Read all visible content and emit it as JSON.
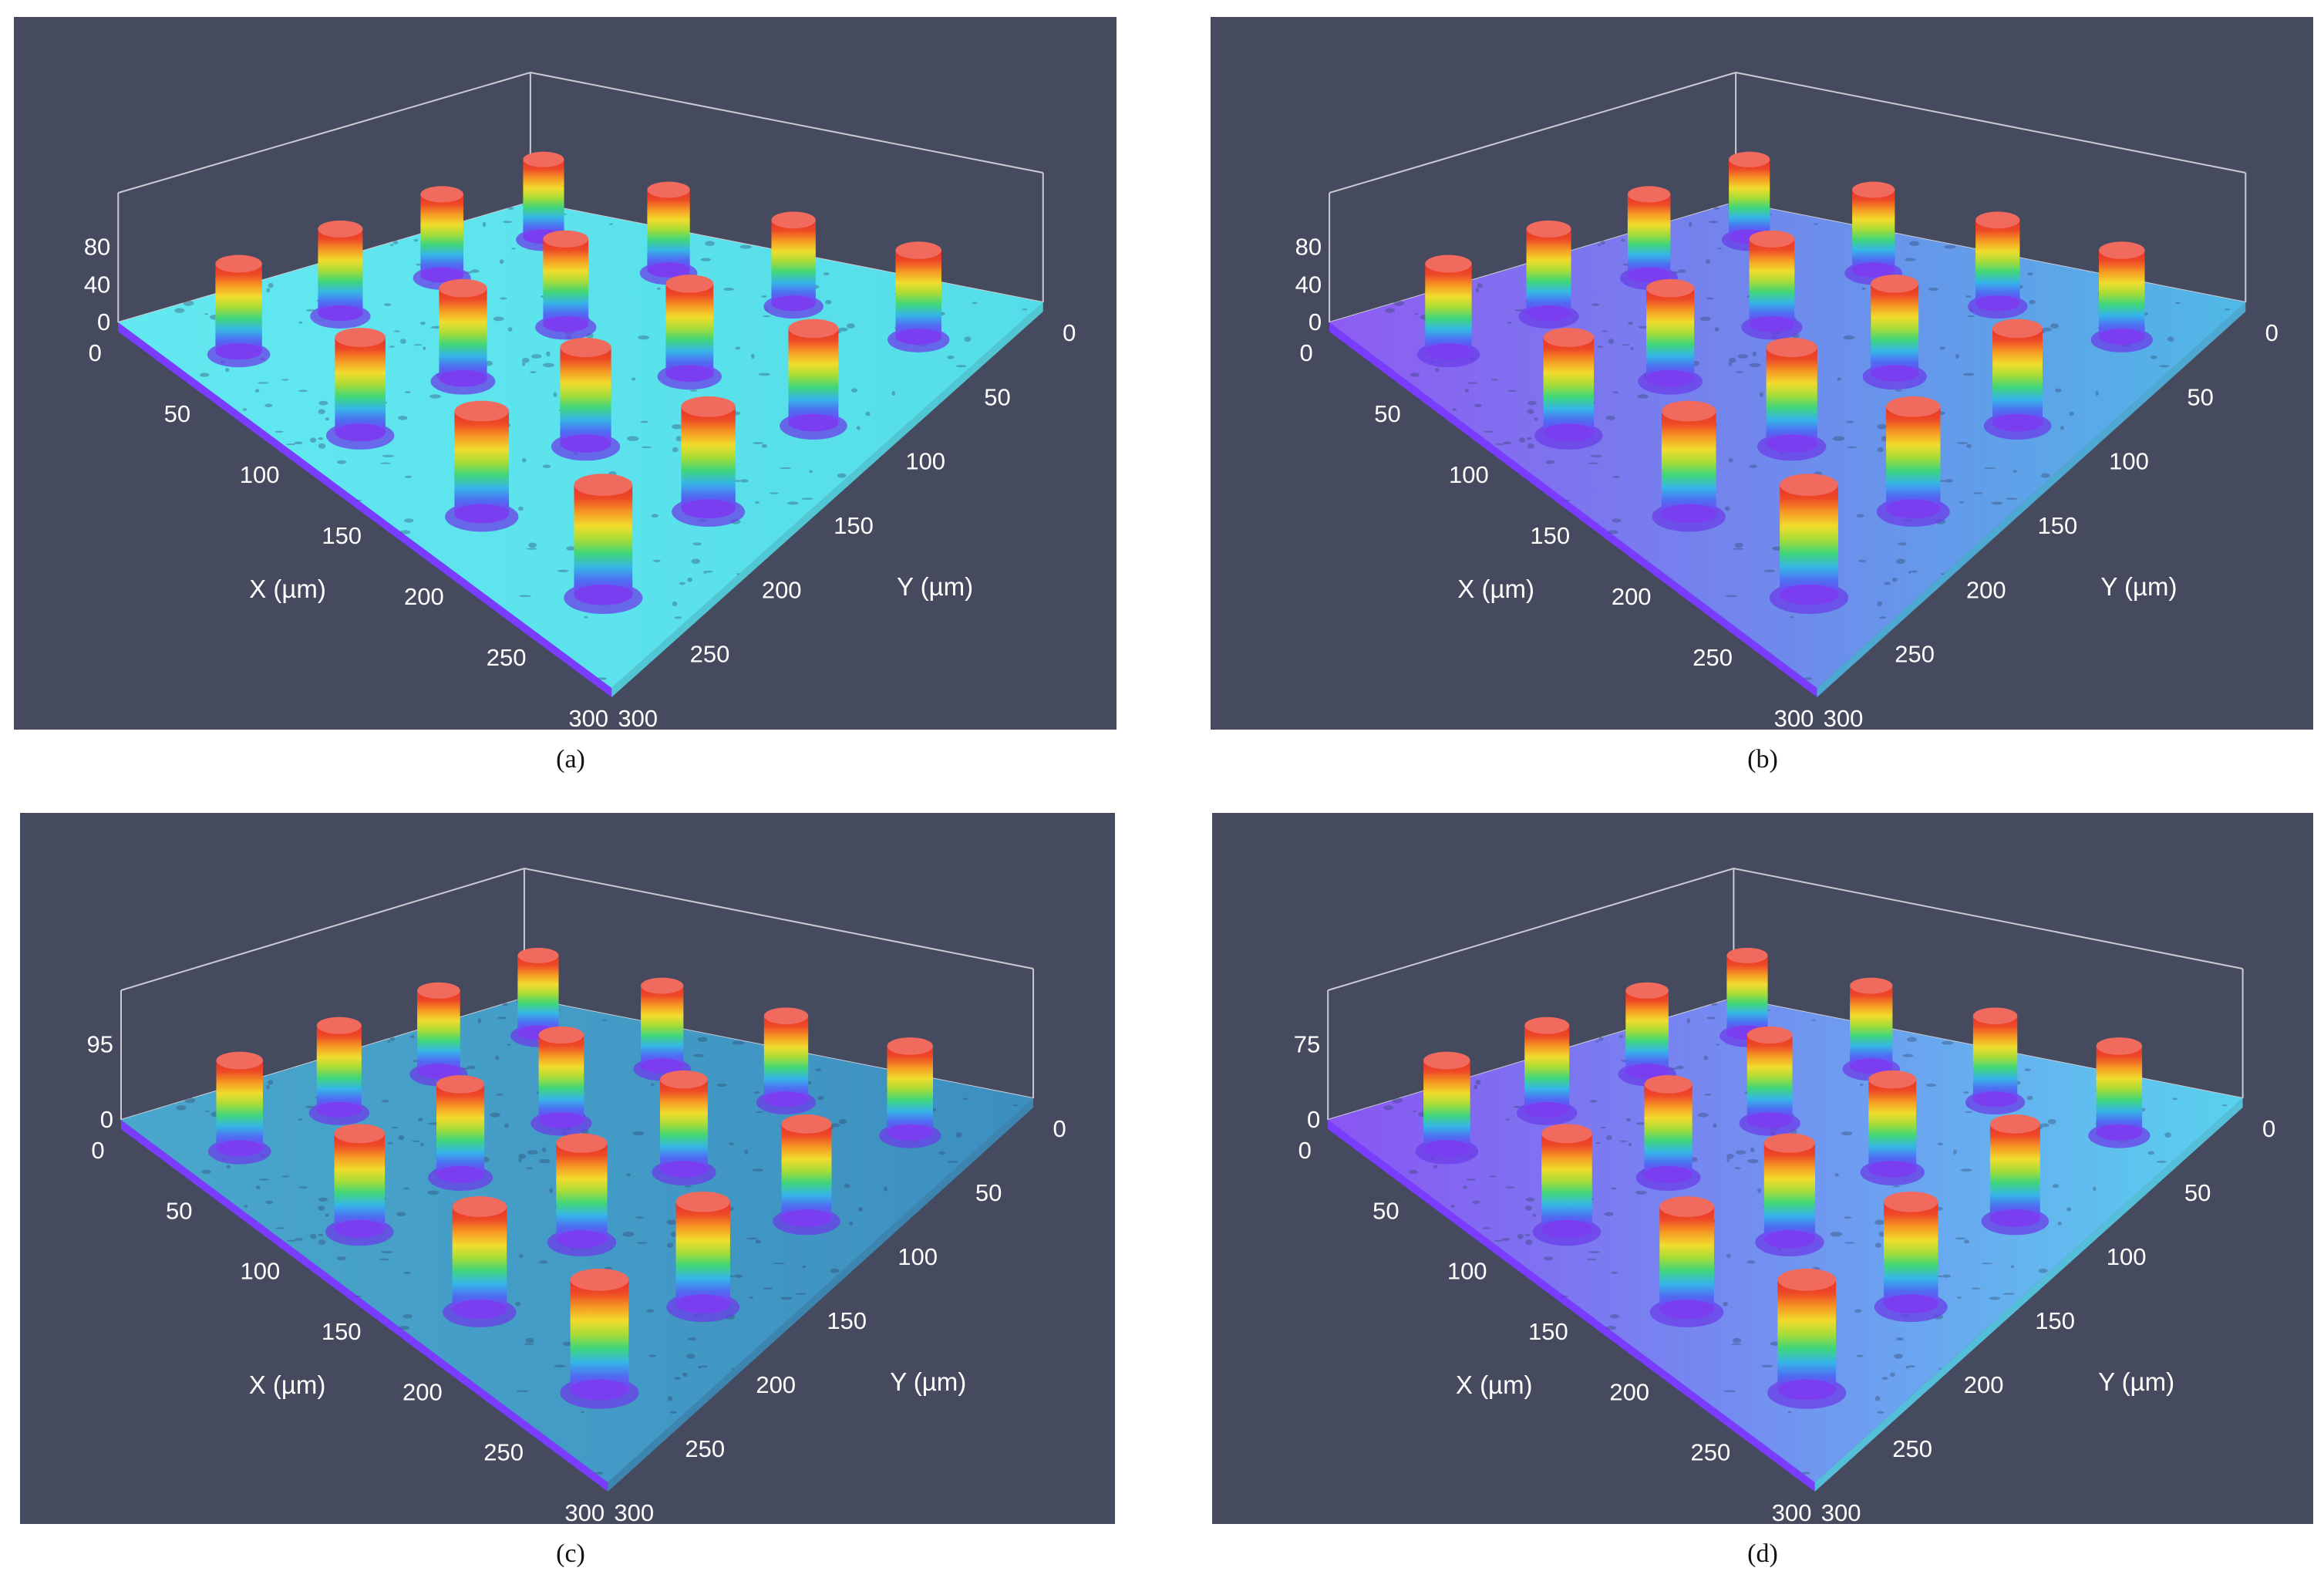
{
  "figure": {
    "panels": [
      {
        "id": "a",
        "caption": "(a)",
        "theme": "cyan",
        "chart_data": {
          "type": "surface3d",
          "xlabel": "X (µm)",
          "ylabel": "Y (µm)",
          "x_ticks": [
            0,
            50,
            100,
            150,
            200,
            250,
            300
          ],
          "y_ticks": [
            0,
            50,
            100,
            150,
            200,
            250,
            300
          ],
          "z_ticks": [
            0,
            40,
            80
          ],
          "xlim": [
            0,
            300
          ],
          "ylim": [
            0,
            300
          ],
          "pillar_grid": "4x4 staggered"
        }
      },
      {
        "id": "b",
        "caption": "(b)",
        "theme": "violet",
        "chart_data": {
          "type": "surface3d",
          "xlabel": "X (µm)",
          "ylabel": "Y (µm)",
          "x_ticks": [
            0,
            50,
            100,
            150,
            200,
            250,
            300
          ],
          "y_ticks": [
            0,
            50,
            100,
            150,
            200,
            250,
            300
          ],
          "z_ticks": [
            0,
            40,
            80
          ],
          "xlim": [
            0,
            300
          ],
          "ylim": [
            0,
            300
          ],
          "pillar_grid": "4x4 staggered"
        }
      },
      {
        "id": "c",
        "caption": "(c)",
        "theme": "teal",
        "chart_data": {
          "type": "surface3d",
          "xlabel": "X (µm)",
          "ylabel": "Y (µm)",
          "x_ticks": [
            0,
            50,
            100,
            150,
            200,
            250,
            300
          ],
          "y_ticks": [
            0,
            50,
            100,
            150,
            200,
            250,
            300
          ],
          "z_ticks": [
            0,
            95
          ],
          "xlim": [
            0,
            300
          ],
          "ylim": [
            0,
            300
          ],
          "pillar_grid": "4x4 staggered"
        }
      },
      {
        "id": "d",
        "caption": "(d)",
        "theme": "violet2",
        "chart_data": {
          "type": "surface3d",
          "xlabel": "X (µm)",
          "ylabel": "Y (µm)",
          "x_ticks": [
            0,
            50,
            100,
            150,
            200,
            250,
            300
          ],
          "y_ticks": [
            0,
            50,
            100,
            150,
            200,
            250,
            300
          ],
          "z_ticks": [
            0,
            75
          ],
          "xlim": [
            0,
            300
          ],
          "ylim": [
            0,
            300
          ],
          "pillar_grid": "4x4 staggered"
        }
      }
    ],
    "colors": {
      "background": "#454a5e",
      "grid_line": "#c9cbd3",
      "pillar_top": "#e8322b",
      "surface_cyan": "#5de6ee",
      "surface_violet": "#8a5cf0"
    }
  }
}
